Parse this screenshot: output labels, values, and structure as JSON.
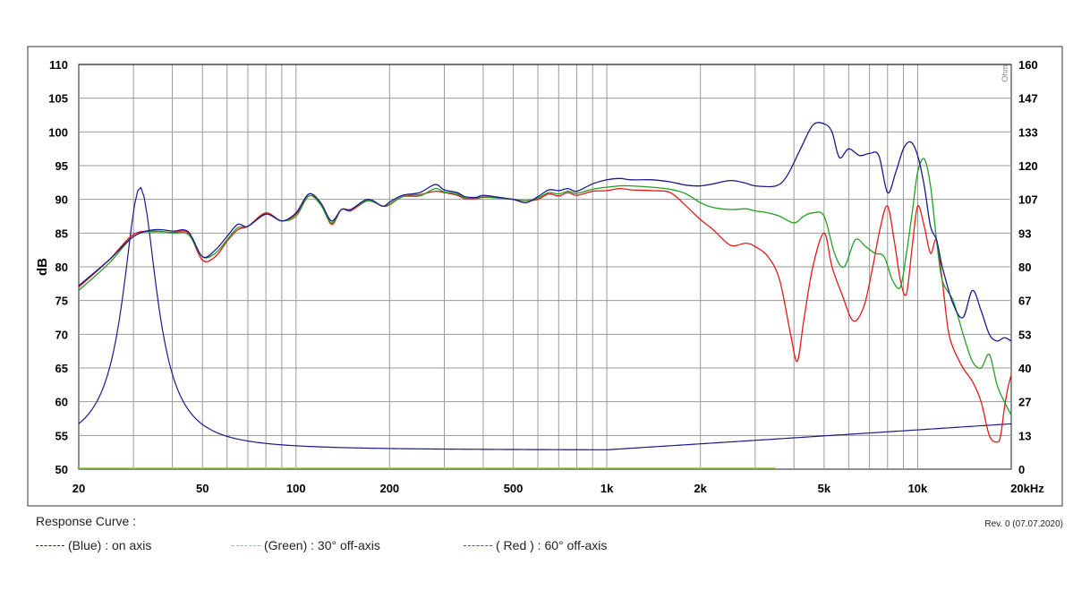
{
  "chart_data": {
    "type": "line",
    "xscale": "log",
    "xlim": [
      20,
      20000
    ],
    "ylim": [
      50,
      110
    ],
    "ylabel": "dB",
    "y_ticks": [
      50,
      55,
      60,
      65,
      70,
      75,
      80,
      85,
      90,
      95,
      100,
      105,
      110
    ],
    "y2_ticks": [
      "0",
      "13",
      "27",
      "40",
      "53",
      "67",
      "80",
      "93",
      "107",
      "120",
      "133",
      "147",
      "160"
    ],
    "y2_unit": "Ohm",
    "x_ticks": [
      {
        "value": 20,
        "label": "20"
      },
      {
        "value": 50,
        "label": "50"
      },
      {
        "value": 100,
        "label": "100"
      },
      {
        "value": 200,
        "label": "200"
      },
      {
        "value": 500,
        "label": "500"
      },
      {
        "value": 1000,
        "label": "1k"
      },
      {
        "value": 2000,
        "label": "2k"
      },
      {
        "value": 5000,
        "label": "5k"
      },
      {
        "value": 10000,
        "label": "10k"
      },
      {
        "value": 20000,
        "label": "20kHz"
      }
    ],
    "grid": true,
    "series": [
      {
        "name": "(Blue) : on axis",
        "color": "#1a1a8c",
        "x": [
          20,
          25,
          30,
          35,
          40,
          45,
          50,
          55,
          60,
          65,
          70,
          80,
          90,
          100,
          110,
          120,
          130,
          140,
          150,
          170,
          190,
          200,
          220,
          250,
          280,
          300,
          330,
          350,
          380,
          400,
          450,
          500,
          550,
          600,
          650,
          700,
          750,
          800,
          900,
          1000,
          1100,
          1200,
          1400,
          1600,
          1800,
          2000,
          2200,
          2500,
          2800,
          3000,
          3500,
          3800,
          4200,
          4600,
          5000,
          5300,
          5600,
          6000,
          6500,
          7000,
          7500,
          8000,
          8500,
          9000,
          9500,
          10000,
          10500,
          11000,
          11500,
          12000,
          13000,
          14000,
          15000,
          16000,
          17000,
          18000,
          19000,
          20000
        ],
        "y": [
          77.2,
          81,
          84.5,
          85.5,
          85.3,
          85.2,
          81.5,
          82.5,
          84.5,
          86.3,
          86,
          87.8,
          86.8,
          88,
          90.8,
          89.5,
          86.8,
          88.5,
          88.5,
          90,
          89,
          89.6,
          90.6,
          91,
          92.2,
          91.4,
          91,
          90.4,
          90.3,
          90.6,
          90.3,
          90,
          89.5,
          90.4,
          91.4,
          91.3,
          91.6,
          91.2,
          92.3,
          92.9,
          93.1,
          92.9,
          92.9,
          92.6,
          92.1,
          92,
          92.3,
          92.8,
          92.4,
          92,
          92,
          93.5,
          97.5,
          101,
          101.2,
          100,
          96.2,
          97.5,
          96.5,
          96.8,
          96.5,
          91,
          94,
          97.5,
          98.5,
          96.5,
          92,
          86,
          84,
          80,
          74.5,
          72.5,
          76.5,
          73.5,
          70,
          69,
          69.5,
          69
        ]
      },
      {
        "name": "(Green) : 30° off-axis",
        "color": "#22a022",
        "x": [
          20,
          25,
          30,
          35,
          40,
          45,
          50,
          55,
          60,
          65,
          70,
          80,
          90,
          100,
          110,
          120,
          130,
          140,
          150,
          170,
          190,
          200,
          220,
          250,
          280,
          300,
          330,
          350,
          380,
          400,
          450,
          500,
          550,
          600,
          650,
          700,
          750,
          800,
          900,
          1000,
          1100,
          1200,
          1400,
          1600,
          1800,
          2000,
          2200,
          2500,
          2800,
          3000,
          3300,
          3600,
          4000,
          4300,
          4600,
          5000,
          5400,
          5800,
          6300,
          6800,
          7300,
          7800,
          8300,
          8800,
          9200,
          9600,
          10000,
          10500,
          11000,
          11500,
          12000,
          13000,
          14000,
          15000,
          16000,
          17000,
          18000,
          19000,
          20000
        ],
        "y": [
          76.5,
          80.5,
          84.5,
          85.3,
          85,
          84.8,
          81.5,
          82,
          84,
          85.8,
          86,
          87.8,
          86.8,
          87.5,
          90.5,
          89.2,
          86.5,
          88.5,
          88.5,
          89.8,
          89,
          89.3,
          90.4,
          90.5,
          91.6,
          91.1,
          90.8,
          90.2,
          90.2,
          90.4,
          90.2,
          90,
          89.8,
          90.2,
          91,
          90.8,
          91.2,
          90.9,
          91.5,
          91.8,
          92,
          92,
          91.8,
          91.5,
          90.8,
          89.5,
          88.8,
          88.5,
          88.6,
          88.3,
          88,
          87.5,
          86.5,
          87.5,
          88,
          87.5,
          82,
          80,
          84,
          83,
          82,
          81.5,
          78,
          77,
          82,
          88,
          94,
          96,
          92,
          84,
          78,
          75,
          70,
          66,
          65,
          67,
          62.5,
          60,
          58
        ]
      },
      {
        "name": "( Red ) : 60° off-axis",
        "color": "#e41a1a",
        "x": [
          20,
          25,
          30,
          35,
          40,
          45,
          50,
          55,
          60,
          65,
          70,
          80,
          90,
          100,
          110,
          120,
          130,
          140,
          150,
          170,
          190,
          200,
          220,
          250,
          280,
          300,
          330,
          350,
          380,
          400,
          450,
          500,
          550,
          600,
          650,
          700,
          750,
          800,
          900,
          1000,
          1100,
          1200,
          1400,
          1600,
          1800,
          2000,
          2200,
          2500,
          2800,
          3000,
          3300,
          3600,
          3900,
          4100,
          4300,
          4600,
          5000,
          5300,
          5700,
          6200,
          6700,
          7100,
          7600,
          8000,
          8400,
          8800,
          9200,
          9600,
          10000,
          10500,
          11000,
          11500,
          12000,
          12500,
          13000,
          14000,
          15000,
          16000,
          17000,
          18000,
          18500,
          19000,
          19500,
          20000
        ],
        "y": [
          77,
          81,
          84.8,
          85.2,
          85.1,
          85,
          81,
          81.5,
          83.8,
          85.5,
          86,
          88,
          86.8,
          87.8,
          90.5,
          89.5,
          86.3,
          88.5,
          88.3,
          89.8,
          89,
          89.2,
          90.4,
          90.7,
          91.2,
          91,
          90.6,
          90.1,
          90.1,
          90.3,
          90.2,
          90,
          89.8,
          90,
          90.8,
          90.5,
          91,
          90.6,
          91.2,
          91.3,
          91.6,
          91.4,
          91.3,
          91,
          89,
          87,
          85.5,
          83.2,
          83.5,
          83,
          81.5,
          78,
          70,
          66,
          72,
          80,
          85,
          80,
          76,
          72,
          74,
          79,
          86,
          89,
          84,
          78,
          76,
          83,
          89,
          86,
          82,
          84,
          78,
          71,
          68,
          65,
          63,
          60,
          55,
          54,
          55,
          59,
          62,
          64
        ]
      }
    ]
  },
  "footer": {
    "heading": "Response Curve :",
    "revision": "Rev. 0 (07.07.2020)",
    "legend": [
      {
        "label": "(Blue)  : on axis",
        "color": "#1a1a8c"
      },
      {
        "label": "(Green) : 30° off-axis",
        "color": "#8fce3f"
      },
      {
        "label": "( Red ) : 60° off-axis",
        "color": "#e41a1a"
      }
    ]
  }
}
